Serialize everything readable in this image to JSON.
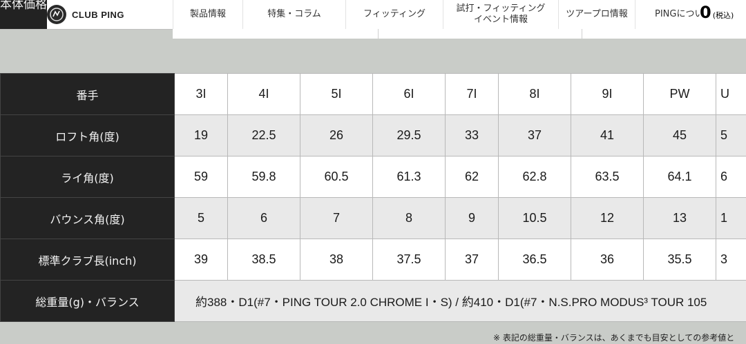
{
  "header": {
    "price_label": "本体価格",
    "logo_text": "CLUB PING",
    "logo_icon": "ping-logo-icon",
    "nav": [
      {
        "label": "製品情報"
      },
      {
        "label": "特集・コラム"
      },
      {
        "label": "フィッティング"
      },
      {
        "label": "試打・フィッティング\nイベント情報"
      },
      {
        "label": "ツアープロ情報"
      },
      {
        "label": "PINGについ"
      }
    ],
    "price_value": "0",
    "price_tax": "(税込)"
  },
  "spec_table": {
    "rows": [
      {
        "label": "番手",
        "values": [
          "3I",
          "4I",
          "5I",
          "6I",
          "7I",
          "8I",
          "9I",
          "PW",
          "U"
        ]
      },
      {
        "label": "ロフト角(度)",
        "values": [
          "19",
          "22.5",
          "26",
          "29.5",
          "33",
          "37",
          "41",
          "45",
          "5"
        ]
      },
      {
        "label": "ライ角(度)",
        "values": [
          "59",
          "59.8",
          "60.5",
          "61.3",
          "62",
          "62.8",
          "63.5",
          "64.1",
          "6"
        ]
      },
      {
        "label": "バウンス角(度)",
        "values": [
          "5",
          "6",
          "7",
          "8",
          "9",
          "10.5",
          "12",
          "13",
          "1"
        ]
      },
      {
        "label": "標準クラブ長(inch)",
        "values": [
          "39",
          "38.5",
          "38",
          "37.5",
          "37",
          "36.5",
          "36",
          "35.5",
          "3"
        ]
      }
    ],
    "weight_row": {
      "label": "総重量(g)・バランス",
      "value": "約388・D1(#7・PING TOUR 2.0 CHROME I・S) / 約410・D1(#7・N.S.PRO MODUS³ TOUR 105"
    }
  },
  "footnote": "※ 表記の総重量・バランスは、あくまでも目安としての参考値と"
}
